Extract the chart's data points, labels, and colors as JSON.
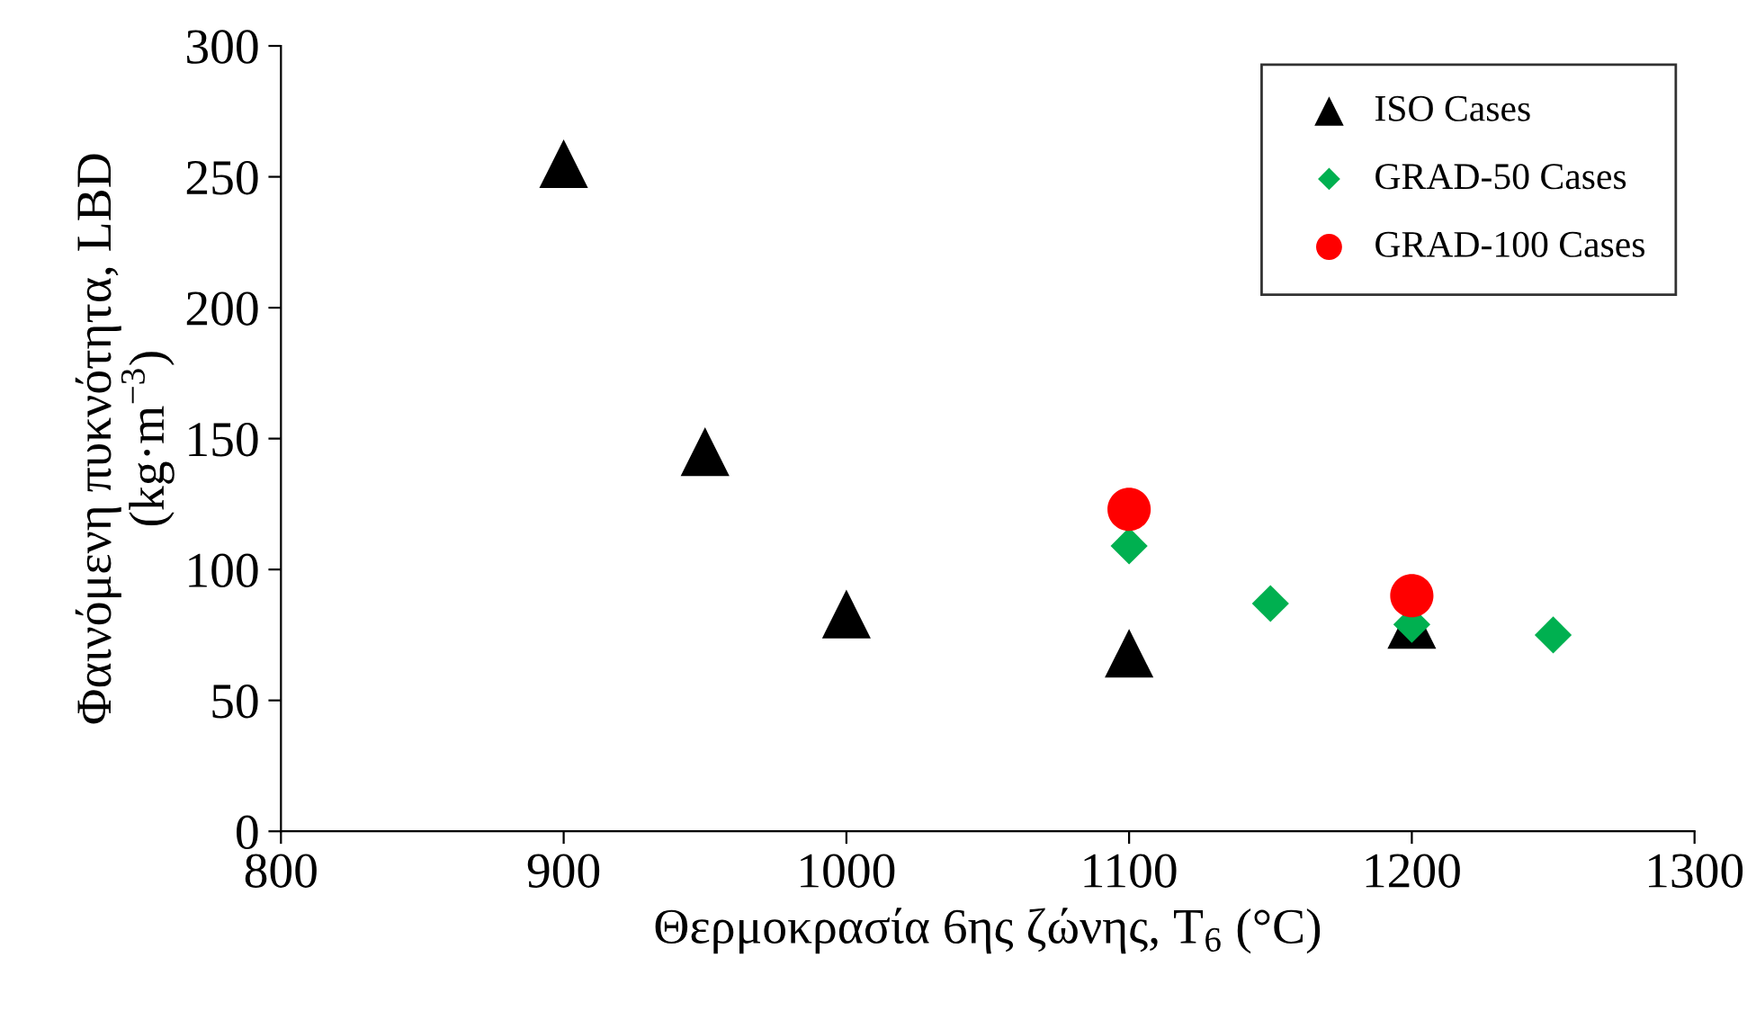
{
  "chart_data": {
    "type": "scatter",
    "xlabel": "Θερμοκρασία 6ης ζώνης, T$_{6}$ (°C)",
    "ylabel": "Φαινόμενη πυκνότητα, LBD\n(kg·m$^{−3}$)",
    "series": [
      {
        "name": "ISO Cases",
        "color": "#000000",
        "marker": "triangle",
        "x": [
          900,
          950,
          1000,
          1100,
          1200
        ],
        "values": [
          255,
          145,
          83,
          68,
          79
        ]
      },
      {
        "name": "GRAD-50 Cases",
        "color": "#00b050",
        "marker": "diamond",
        "x": [
          1100,
          1150,
          1200,
          1250
        ],
        "values": [
          109,
          87,
          79,
          75
        ]
      },
      {
        "name": "GRAD-100 Cases",
        "color": "#ff0000",
        "marker": "circle",
        "x": [
          1100,
          1200
        ],
        "values": [
          123,
          90
        ]
      }
    ],
    "xlim": [
      800,
      1300
    ],
    "xticks": [
      800,
      900,
      1000,
      1100,
      1200,
      1300
    ],
    "ylim": [
      0,
      300
    ],
    "yticks": [
      0,
      50,
      100,
      150,
      200,
      250,
      300
    ],
    "grid": false,
    "legend": "top right"
  }
}
